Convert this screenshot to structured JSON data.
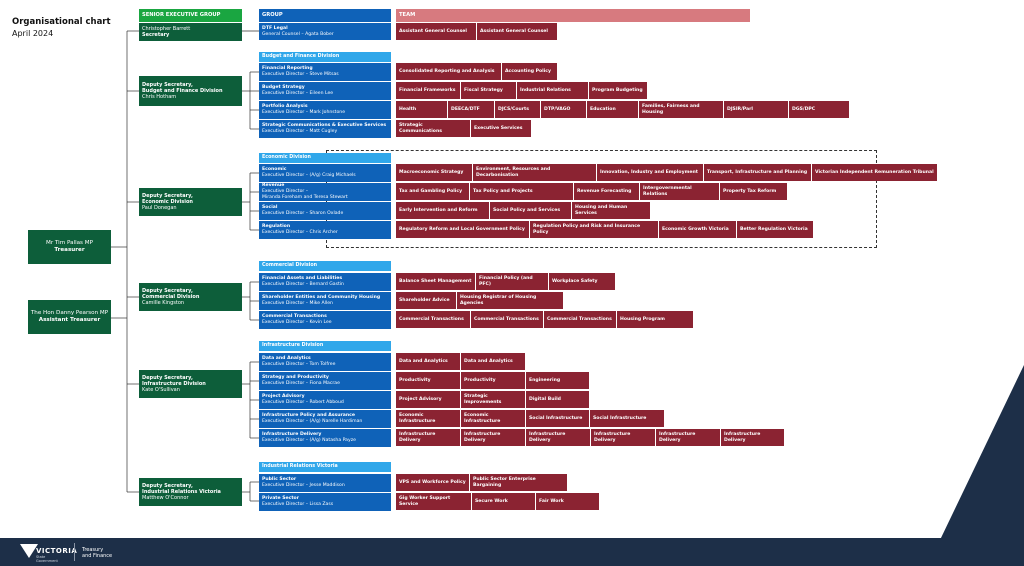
{
  "title": "Organisational chart",
  "subtitle": "April 2024",
  "ministers": [
    {
      "name": "Mr Tim Pallas MP",
      "role": "Treasurer"
    },
    {
      "name": "The Hon Danny Pearson MP",
      "role": "Assistant Treasurer"
    }
  ],
  "columns": {
    "senior": "SENIOR EXECUTIVE GROUP",
    "group": "GROUP",
    "team": "TEAM"
  },
  "secretary": {
    "name": "Christopher Barrett",
    "role": "Secretary"
  },
  "divisions": [
    {
      "deputy_title": "Deputy Secretary,",
      "deputy_division": "Budget and Finance Division",
      "deputy_name": "Chris Hotham",
      "heading": "Budget and Finance Division",
      "groups": [
        {
          "name": "Financial Reporting",
          "director": "Executive Director – Steve Mitsas",
          "teams": [
            "Consolidated Reporting and Analysis",
            "Accounting Policy"
          ]
        },
        {
          "name": "Budget Strategy",
          "director": "Executive Director – Eileen Lee",
          "teams": [
            "Financial Frameworks",
            "Fiscal Strategy",
            "Industrial Relations",
            "Program Budgeting"
          ]
        },
        {
          "name": "Portfolio Analysis",
          "director": "Executive Director – Mark Johnstone",
          "teams": [
            "Health",
            "DEECA/DTF",
            "DJCS/Courts",
            "DTP/VAGO",
            "Education",
            "Families, Fairness and Housing",
            "DJSIR/Parl",
            "DGS/DPC"
          ]
        },
        {
          "name": "Strategic Communications & Executive Services",
          "director": "Executive Director – Matt Cugley",
          "teams": [
            "Strategic Communications",
            "Executive Services"
          ]
        }
      ]
    },
    {
      "deputy_title": "Deputy Secretary,",
      "deputy_division": "Economic Division",
      "deputy_name": "Paul Donegan",
      "heading": "Economic Division",
      "groups": [
        {
          "name": "Economic",
          "director": "Executive Director – (A/g) Craig Michaels",
          "teams": [
            "Macroeconomic Strategy",
            "Environment, Resources and Decarbonisation",
            "Innovation, Industry and Employment",
            "Transport, Infrastructure and Planning",
            "Victorian Independent Remuneration Tribunal"
          ]
        },
        {
          "name": "Revenue",
          "director": "Executive Director –",
          "director2": "Miranda Foreham and Teresa Stewart",
          "teams": [
            "Tax and Gambling Policy",
            "Tax Policy and Projects",
            "Revenue Forecasting",
            "Intergovernmental Relations",
            "Property Tax Reform"
          ]
        },
        {
          "name": "Social",
          "director": "Executive Director – Sharon Oxlade",
          "teams": [
            "Early Intervention and Reform",
            "Social Policy and Services",
            "Housing and Human Services"
          ]
        },
        {
          "name": "Regulation",
          "director": "Executive Director – Chris Archer",
          "teams": [
            "Regulatory Reform and Local Government Policy",
            "Regulation Policy and Risk and Insurance Policy",
            "Economic Growth Victoria",
            "Better Regulation Victoria"
          ]
        }
      ]
    },
    {
      "deputy_title": "Deputy Secretary,",
      "deputy_division": "Commercial Division",
      "deputy_name": "Camille Kingston",
      "heading": "Commercial Division",
      "groups": [
        {
          "name": "Financial Assets and Liabilities",
          "director": "Executive Director – Bernard Gastin",
          "teams": [
            "Balance Sheet Management",
            "Financial Policy (and PFC)",
            "Workplace Safety"
          ]
        },
        {
          "name": "Shareholder Entities and Community Housing",
          "director": "Executive Director – Mike Allen",
          "teams": [
            "Shareholder Advice",
            "Housing Registrar of Housing Agencies"
          ]
        },
        {
          "name": "Commercial Transactions",
          "director": "Executive Director – Kevin Lee",
          "teams": [
            "Commercial Transactions",
            "Commercial Transactions",
            "Commercial Transactions",
            "Housing Program"
          ]
        }
      ]
    },
    {
      "deputy_title": "Deputy Secretary,",
      "deputy_division": "Infrastructure Division",
      "deputy_name": "Kate O'Sullivan",
      "heading": "Infrastructure Division",
      "groups": [
        {
          "name": "Data and Analytics",
          "director": "Executive Director – Tom Tolfree",
          "teams": [
            "Data and Analytics",
            "Data and Analytics"
          ]
        },
        {
          "name": "Strategy and Productivity",
          "director": "Executive Director – Fiona Macrae",
          "teams": [
            "Productivity",
            "Productivity",
            "Engineering"
          ]
        },
        {
          "name": "Project Advisory",
          "director": "Executive Director – Robert Abboud",
          "teams": [
            "Project Advisory",
            "Strategic Improvements",
            "Digital Build"
          ]
        },
        {
          "name": "Infrastructure Policy and Assurance",
          "director": "Executive Director – (A/g) Narelle Hardiman",
          "teams": [
            "Economic Infrastructure",
            "Economic Infrastructure",
            "Social Infrastructure",
            "Social Infrastructure"
          ]
        },
        {
          "name": "Infrastructure Delivery",
          "director": "Executive Director – (A/g) Natasha Payze",
          "teams": [
            "Infrastructure Delivery",
            "Infrastructure Delivery",
            "Infrastructure Delivery",
            "Infrastructure Delivery",
            "Infrastructure Delivery",
            "Infrastructure Delivery"
          ]
        }
      ]
    },
    {
      "deputy_title": "Deputy Secretary,",
      "deputy_division": "Industrial Relations Victoria",
      "deputy_name": "Matthew O'Connor",
      "heading": "Industrial Relations Victoria",
      "groups": [
        {
          "name": "Public Sector",
          "director": "Executive Director – Jesse Maddison",
          "teams": [
            "VPS and Workforce Policy",
            "Public Sector Enterprise Bargaining"
          ]
        },
        {
          "name": "Private Sector",
          "director": "Executive Director – Lissa Zass",
          "teams": [
            "Gig Worker Support Service",
            "Secure Work",
            "Fair Work"
          ]
        }
      ]
    }
  ],
  "legal": {
    "name": "DTF Legal",
    "director": "General Counsel – Agata Bober",
    "teams": [
      "Assistant General Counsel",
      "Assistant General Counsel"
    ]
  },
  "footer": {
    "logo_word": "VICTORIA",
    "logo_sub_1": "State",
    "logo_sub_2": "Government",
    "dept_1": "Treasury",
    "dept_2": "and Finance"
  },
  "colors": {
    "senior": "#0d5e3a",
    "senior_header": "#1aa641",
    "group": "#0f62b8",
    "division_header": "#30a7ea",
    "team": "#8b2332",
    "team_header": "#d77a7f",
    "footer": "#1d2f48"
  }
}
